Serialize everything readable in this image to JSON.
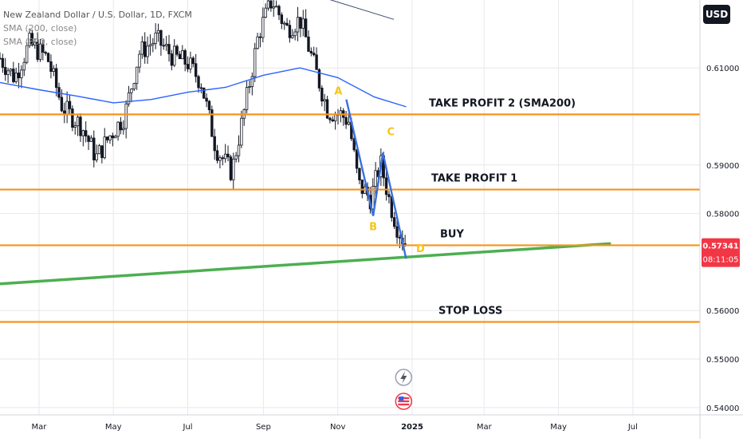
{
  "header": {
    "symbol_line": "New Zealand Dollar / U.S. Dollar, 1D, FXCM",
    "indicators": [
      "SMA (200, close)",
      "SMA (800, close)"
    ],
    "currency_button": "USD"
  },
  "colors": {
    "candle": "#131722",
    "level": "#f7931a",
    "sma200": "#2962ff",
    "trendline": "#4caf50",
    "pattern": "#3b6fe0",
    "pattern_label": "#f5c518",
    "last_price_badge": "#f23645",
    "grid": "#e8e8ee"
  },
  "chart_data": {
    "type": "candlestick",
    "ylim": [
      0.5385,
      0.624
    ],
    "y_ticks": [
      "0.61000",
      "0.59000",
      "0.58000",
      "0.56000",
      "0.55000",
      "0.54000"
    ],
    "x_ticks": [
      "Mar",
      "May",
      "Jul",
      "Sep",
      "Nov",
      "2025",
      "Mar",
      "May",
      "Jul"
    ],
    "x_tick_dates": [
      "2024-03-01",
      "2024-05-01",
      "2024-07-01",
      "2024-09-01",
      "2024-11-01",
      "2025-01-01",
      "2025-03-01",
      "2025-05-01",
      "2025-07-01"
    ],
    "x_range": [
      "2024-01-29",
      "2025-08-25"
    ],
    "levels": [
      {
        "name": "take-profit-2",
        "price": 0.60043,
        "label": "TAKE PROFIT 2 (SMA200)",
        "badge": "0.60043"
      },
      {
        "name": "take-profit-1",
        "price": 0.58494,
        "label": "TAKE PROFIT 1",
        "badge": "0.58494"
      },
      {
        "name": "buy",
        "price": 0.57345,
        "label": "BUY",
        "badge": "0.57345"
      },
      {
        "name": "stop-loss",
        "price": 0.55766,
        "label": "STOP LOSS",
        "badge": "0.55766"
      }
    ],
    "last_price": {
      "price": 0.57341,
      "label": "0.57341",
      "countdown": "08:11:05"
    },
    "sma200": {
      "x": [
        "2024-01-29",
        "2024-03-01",
        "2024-04-01",
        "2024-05-01",
        "2024-06-01",
        "2024-07-01",
        "2024-08-01",
        "2024-09-01",
        "2024-10-01",
        "2024-11-01",
        "2024-12-01",
        "2024-12-27"
      ],
      "y": [
        0.607,
        0.6055,
        0.6042,
        0.6028,
        0.6035,
        0.605,
        0.606,
        0.6085,
        0.61,
        0.608,
        0.604,
        0.602
      ]
    },
    "trendline": {
      "x": [
        "2024-01-29",
        "2025-06-13"
      ],
      "y": [
        0.5655,
        0.5738
      ]
    },
    "harmonic": {
      "points": [
        {
          "label": "A",
          "x": "2024-11-08",
          "y": 0.6035
        },
        {
          "label": "B",
          "x": "2024-11-30",
          "y": 0.5795
        },
        {
          "label": "C",
          "x": "2024-12-08",
          "y": 0.5925
        },
        {
          "label": "D",
          "x": "2024-12-27",
          "y": 0.5707
        }
      ]
    },
    "candles": {
      "start": "2024-01-29",
      "interval_days": 2.2,
      "anchors": [
        [
          "2024-01-29",
          0.612
        ],
        [
          "2024-02-10",
          0.608
        ],
        [
          "2024-02-22",
          0.615
        ],
        [
          "2024-03-08",
          0.612
        ],
        [
          "2024-03-20",
          0.602
        ],
        [
          "2024-04-05",
          0.598
        ],
        [
          "2024-04-17",
          0.5915
        ],
        [
          "2024-04-28",
          0.596
        ],
        [
          "2024-05-10",
          0.6
        ],
        [
          "2024-05-22",
          0.613
        ],
        [
          "2024-06-05",
          0.616
        ],
        [
          "2024-06-18",
          0.6125
        ],
        [
          "2024-07-01",
          0.611
        ],
        [
          "2024-07-12",
          0.607
        ],
        [
          "2024-07-24",
          0.5935
        ],
        [
          "2024-08-06",
          0.5885
        ],
        [
          "2024-08-17",
          0.602
        ],
        [
          "2024-08-28",
          0.617
        ],
        [
          "2024-09-08",
          0.624
        ],
        [
          "2024-09-20",
          0.618
        ],
        [
          "2024-10-01",
          0.62
        ],
        [
          "2024-10-12",
          0.611
        ],
        [
          "2024-10-24",
          0.601
        ],
        [
          "2024-11-03",
          0.6005
        ],
        [
          "2024-11-10",
          0.599
        ],
        [
          "2024-11-18",
          0.586
        ],
        [
          "2024-11-28",
          0.583
        ],
        [
          "2024-12-06",
          0.5905
        ],
        [
          "2024-12-14",
          0.582
        ],
        [
          "2024-12-20",
          0.577
        ],
        [
          "2024-12-27",
          0.5734
        ]
      ]
    }
  }
}
